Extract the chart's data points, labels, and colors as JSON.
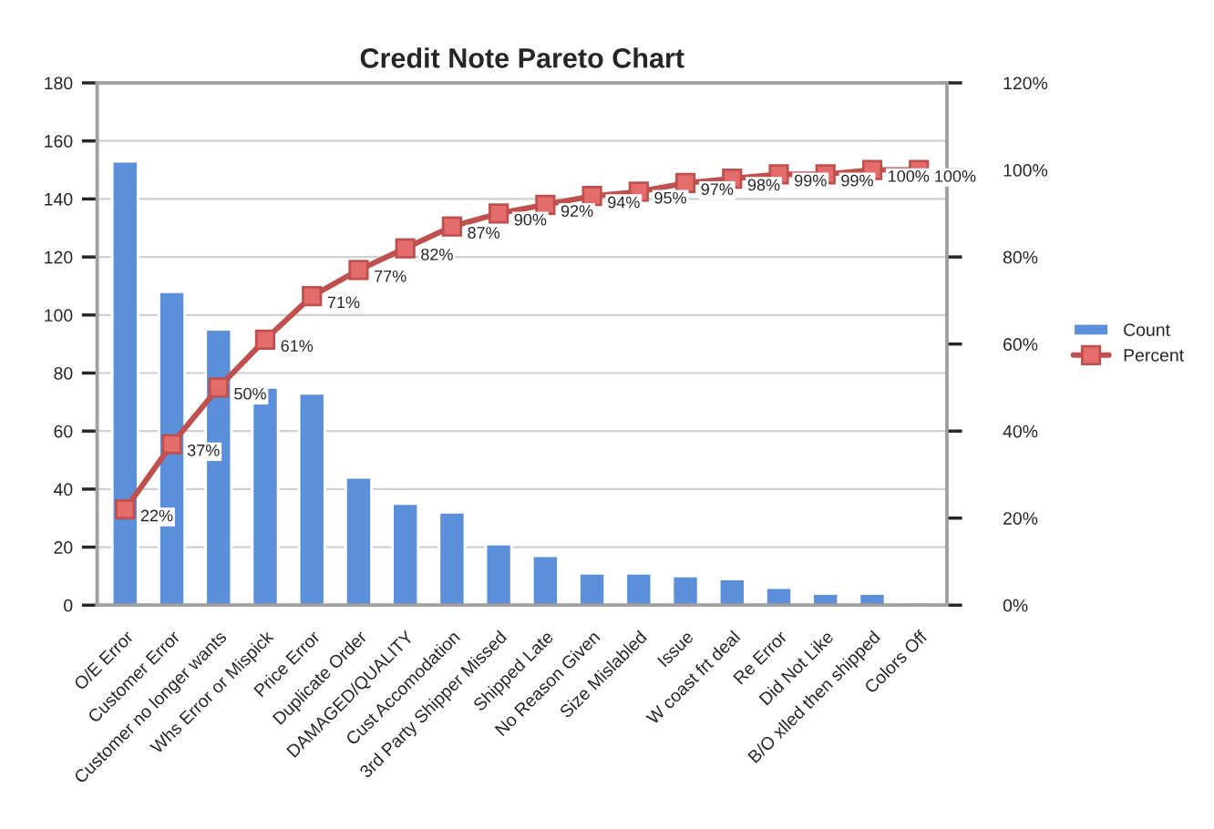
{
  "chart_data": {
    "type": "bar",
    "title": "Credit Note Pareto Chart",
    "categories": [
      "O/E Error",
      "Customer Error",
      "Customer no longer wants",
      "Whs Error or Mispick",
      "Price Error",
      "Duplicate Order",
      "DAMAGED/QUALITY",
      "Cust Accomodation",
      "3rd Party Shipper Missed",
      "Shipped Late",
      "No Reason Given",
      "Size Mislabled",
      "Issue",
      "W coast frt deal",
      "Re Error",
      "Did Not Like",
      "B/O xlled then shipped",
      "Colors Off"
    ],
    "series": [
      {
        "name": "Count",
        "color": "#5b8fd9",
        "values": [
          153,
          108,
          95,
          75,
          73,
          44,
          35,
          32,
          21,
          17,
          11,
          11,
          10,
          9,
          6,
          4,
          4,
          1
        ]
      },
      {
        "name": "Percent",
        "type": "line",
        "axis": "y2",
        "color": "#c0504d",
        "values": [
          22,
          37,
          50,
          61,
          71,
          77,
          82,
          87,
          90,
          92,
          94,
          95,
          97,
          98,
          99,
          99,
          100,
          100
        ],
        "value_labels": [
          "22%",
          "37%",
          "50%",
          "61%",
          "71%",
          "77%",
          "82%",
          "87%",
          "90%",
          "92%",
          "94%",
          "95%",
          "97%",
          "98%",
          "99%",
          "99%",
          "100%",
          "100%"
        ]
      }
    ],
    "ylim": [
      0,
      180
    ],
    "yticks": [
      0,
      20,
      40,
      60,
      80,
      100,
      120,
      140,
      160,
      180
    ],
    "y2lim": [
      0,
      120
    ],
    "y2ticks": [
      {
        "value": 0,
        "label": "0%"
      },
      {
        "value": 20,
        "label": "20%"
      },
      {
        "value": 40,
        "label": "40%"
      },
      {
        "value": 60,
        "label": "60%"
      },
      {
        "value": 80,
        "label": "80%"
      },
      {
        "value": 100,
        "label": "100%"
      },
      {
        "value": 120,
        "label": "120%"
      }
    ],
    "grid": "y",
    "legend": "right",
    "marker": "square",
    "line_style": "solid"
  }
}
